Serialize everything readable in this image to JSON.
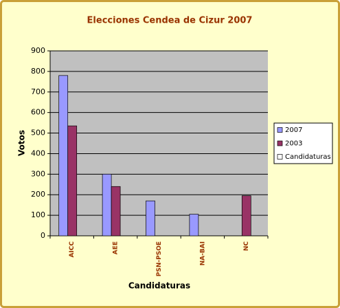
{
  "chart_data": {
    "type": "bar",
    "title": "Elecciones Cendea de Cizur 2007",
    "x_label": "Candidaturas",
    "y_label": "Votos",
    "categories": [
      "AICC",
      "AEE",
      "PSN-PSOE",
      "NA-BAI",
      "NC"
    ],
    "series": [
      {
        "name": "2007",
        "color": "#9999FF",
        "values": [
          780,
          300,
          170,
          105,
          null
        ]
      },
      {
        "name": "2003",
        "color": "#993366",
        "values": [
          535,
          240,
          null,
          null,
          195
        ]
      },
      {
        "name": "Candidaturas",
        "color": "#FFFFFF",
        "values": [
          null,
          null,
          null,
          null,
          null
        ]
      }
    ],
    "ylim": [
      0,
      900
    ],
    "yticks": [
      0,
      100,
      200,
      300,
      400,
      500,
      600,
      700,
      800,
      900
    ],
    "grid": true,
    "plot_background": "#C0C0C0"
  }
}
